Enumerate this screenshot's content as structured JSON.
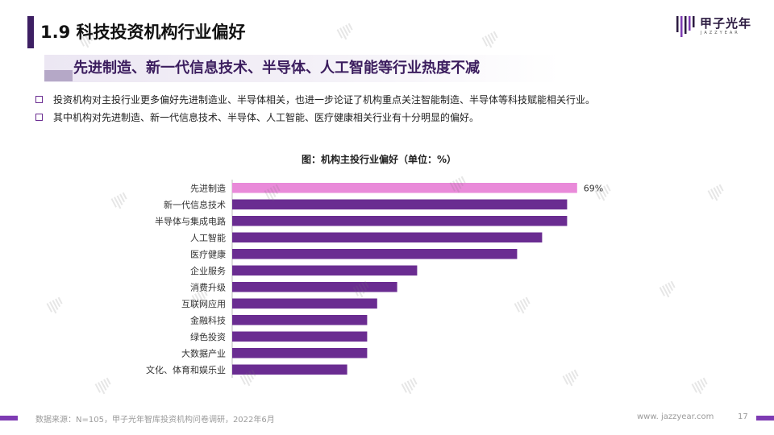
{
  "header": {
    "title": "1.9 科技投资机构行业偏好",
    "subtitle": "先进制造、新一代信息技术、半导体、人工智能等行业热度不减",
    "logo_text": "甲子光年",
    "logo_sub": "JAZZYEAR"
  },
  "bullets": [
    "投资机构对主投行业更多偏好先进制造业、半导体相关，也进一步论证了机构重点关注智能制造、半导体等科技赋能相关行业。",
    "其中机构对先进制造、新一代信息技术、半导体、人工智能、医疗健康相关行业有十分明显的偏好。"
  ],
  "chart_data": {
    "type": "bar",
    "orientation": "horizontal",
    "title": "图：机构主投行业偏好（单位：%）",
    "categories": [
      "先进制造",
      "新一代信息技术",
      "半导体与集成电路",
      "人工智能",
      "医疗健康",
      "企业服务",
      "消费升级",
      "互联网应用",
      "金融科技",
      "绿色投资",
      "大数据产业",
      "文化、体育和娱乐业"
    ],
    "values": [
      69,
      67,
      67,
      62,
      57,
      37,
      33,
      29,
      27,
      27,
      27,
      23
    ],
    "data_labels": [
      "69%",
      "",
      "",
      "",
      "",
      "",
      "",
      "",
      "",
      "",
      "",
      ""
    ],
    "highlight_color": "#e98ad9",
    "bar_color": "#6a2c91",
    "xlim": [
      0,
      100
    ],
    "grid": false,
    "legend": "none"
  },
  "footer": {
    "source": "数据来源：N=105，甲子光年智库投资机构问卷调研，2022年6月",
    "website": "www. jazzyear.com",
    "page": "17"
  },
  "colors": {
    "accent": "#3d1f63",
    "purple": "#6a2c91",
    "pink": "#e98ad9"
  }
}
